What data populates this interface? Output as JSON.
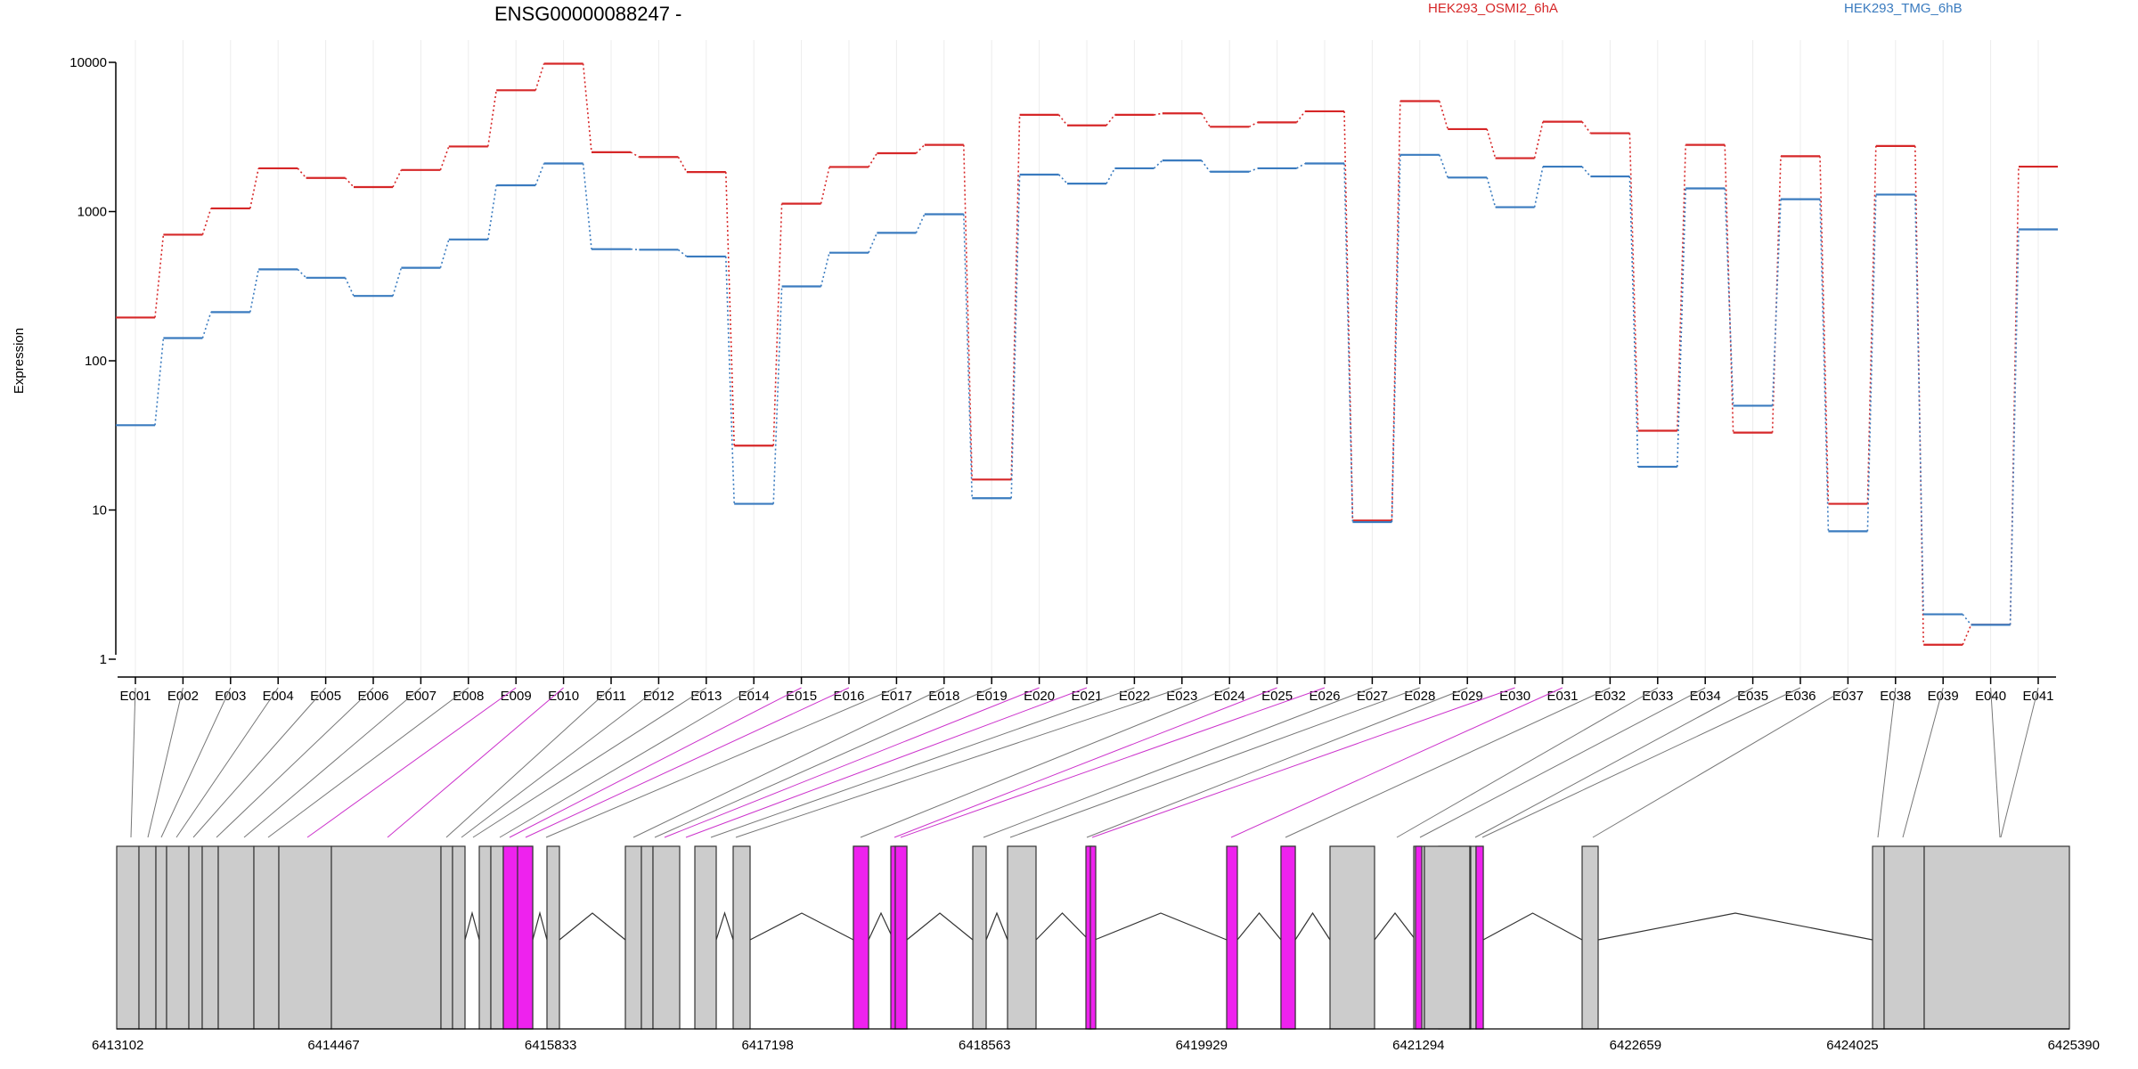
{
  "chart_data": {
    "type": "line",
    "title": "ENSG00000088247 -",
    "xlabel": "",
    "ylabel": "Expression",
    "y_scale": "log",
    "ylim": [
      0.5,
      10000
    ],
    "y_ticks": [
      1,
      10,
      100,
      1000,
      10000
    ],
    "y_tick_labels": [
      "1",
      "10",
      "100",
      "1000",
      "10000"
    ],
    "grid": "vertical",
    "legend_position": "top",
    "categories": [
      "E001",
      "E002",
      "E003",
      "E004",
      "E005",
      "E006",
      "E007",
      "E008",
      "E009",
      "E010",
      "E011",
      "E012",
      "E013",
      "E014",
      "E015",
      "E016",
      "E017",
      "E018",
      "E019",
      "E020",
      "E021",
      "E022",
      "E023",
      "E024",
      "E025",
      "E026",
      "E027",
      "E028",
      "E029",
      "E030",
      "E031",
      "E032",
      "E033",
      "E034",
      "E035",
      "E036",
      "E037",
      "E038",
      "E039",
      "E040",
      "E041"
    ],
    "series": [
      {
        "name": "HEK293_OSMI2_6hA",
        "color": "#d62728",
        "values": [
          195,
          700,
          1050,
          1950,
          1680,
          1460,
          1900,
          2730,
          6500,
          9800,
          2500,
          2320,
          1840,
          27,
          1130,
          1990,
          2460,
          2800,
          16,
          4450,
          3780,
          4450,
          4550,
          3700,
          3960,
          4700,
          8.5,
          5500,
          3570,
          2280,
          4000,
          3350,
          34,
          2800,
          33,
          2350,
          11,
          2750,
          1.25,
          1.7,
          2000
        ]
      },
      {
        "name": "HEK293_TMG_6hB",
        "color": "#3a7bbf",
        "values": [
          37,
          142,
          212,
          410,
          360,
          272,
          420,
          650,
          1500,
          2100,
          560,
          555,
          500,
          11,
          315,
          530,
          720,
          960,
          12,
          1770,
          1540,
          1950,
          2200,
          1850,
          1950,
          2100,
          8.3,
          2400,
          1690,
          1070,
          2000,
          1720,
          19.5,
          1430,
          50,
          1210,
          7.2,
          1300,
          2.0,
          1.7,
          760
        ]
      }
    ],
    "gene_model": {
      "coordinate_ticks": [
        "6413102",
        "6414467",
        "6415833",
        "6417198",
        "6418563",
        "6419929",
        "6421294",
        "6422659",
        "6424025",
        "6425390"
      ],
      "highlight_color": "#ee22ee",
      "exon_color": "#cccccc",
      "highlighted_exons": [
        "E009",
        "E010",
        "E015",
        "E016",
        "E020",
        "E021",
        "E025",
        "E026",
        "E030",
        "E031"
      ]
    }
  }
}
